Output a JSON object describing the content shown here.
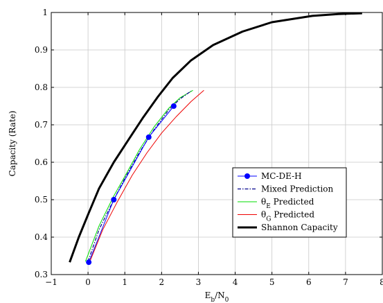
{
  "chart_data": {
    "type": "line",
    "title": "",
    "xlabel": "Eb/N0",
    "xlabel_parts": {
      "base": "E",
      "sub1": "b",
      "mid": "/N",
      "sub2": "0"
    },
    "ylabel": "Capacity (Rate)",
    "xlim": [
      -1,
      8
    ],
    "ylim": [
      0.3,
      1.0
    ],
    "xticks": [
      -1,
      0,
      1,
      2,
      3,
      4,
      5,
      6,
      7,
      8
    ],
    "yticks": [
      0.3,
      0.4,
      0.5,
      0.6,
      0.7,
      0.8,
      0.9,
      1.0
    ],
    "xtick_labels": [
      "−1",
      "0",
      "1",
      "2",
      "3",
      "4",
      "5",
      "6",
      "7",
      "8"
    ],
    "ytick_labels": [
      "0.3",
      "0.4",
      "0.5",
      "0.6",
      "0.7",
      "0.8",
      "0.9",
      "1"
    ],
    "grid": true,
    "legend_position": "bottom-right",
    "series": [
      {
        "name": "MC-DE-H",
        "style": "marker-line",
        "color": "#0000ff",
        "x": [
          0.02,
          0.7,
          1.65,
          2.33
        ],
        "y": [
          0.333,
          0.5,
          0.667,
          0.75
        ]
      },
      {
        "name": "Mixed Prediction",
        "style": "dash-dot",
        "color": "#00008b",
        "x": [
          0.0,
          0.3,
          0.7,
          1.0,
          1.4,
          1.8,
          2.2,
          2.5,
          2.8
        ],
        "y": [
          0.335,
          0.42,
          0.5,
          0.557,
          0.627,
          0.688,
          0.741,
          0.769,
          0.79
        ]
      },
      {
        "name": "θE Predicted",
        "name_parts": {
          "base": "θ",
          "sub": "E",
          "suffix": " Predicted"
        },
        "style": "solid",
        "color": "#00dd00",
        "x": [
          -0.07,
          0.3,
          0.7,
          1.0,
          1.4,
          1.8,
          2.2,
          2.5,
          2.85
        ],
        "y": [
          0.335,
          0.43,
          0.51,
          0.562,
          0.634,
          0.695,
          0.745,
          0.772,
          0.792
        ]
      },
      {
        "name": "θG Predicted",
        "name_parts": {
          "base": "θ",
          "sub": "G",
          "suffix": " Predicted"
        },
        "style": "solid",
        "color": "#ee0000",
        "x": [
          0.05,
          0.4,
          0.8,
          1.2,
          1.6,
          2.0,
          2.4,
          2.8,
          3.15
        ],
        "y": [
          0.335,
          0.42,
          0.495,
          0.565,
          0.625,
          0.678,
          0.722,
          0.762,
          0.792
        ]
      },
      {
        "name": "Shannon Capacity",
        "style": "thick",
        "color": "#000000",
        "x": [
          -0.5,
          -0.25,
          0.0,
          0.3,
          0.7,
          1.1,
          1.5,
          1.9,
          2.3,
          2.8,
          3.4,
          4.2,
          5.0,
          6.1,
          6.8,
          7.45
        ],
        "y": [
          0.333,
          0.4,
          0.46,
          0.53,
          0.6,
          0.66,
          0.72,
          0.775,
          0.825,
          0.872,
          0.913,
          0.949,
          0.974,
          0.991,
          0.996,
          0.998
        ]
      }
    ]
  }
}
